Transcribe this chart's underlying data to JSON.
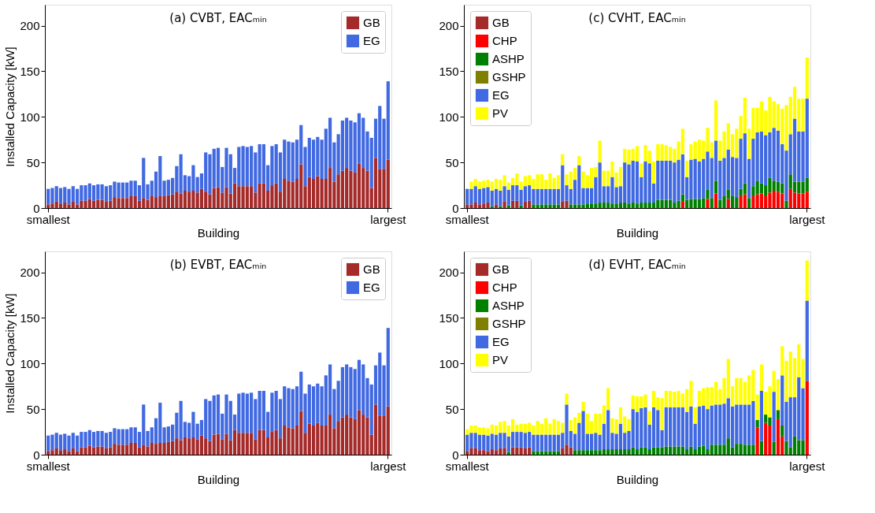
{
  "chart_data": [
    {
      "type": "bar",
      "stacked": true,
      "title": "(a) CVBT, EACₘᵢₙ",
      "xlabel": "Building",
      "ylabel": "Installed Capacity [kW]",
      "legend": "top right",
      "ylim": [
        0,
        223
      ],
      "yticks": [
        0,
        50,
        100,
        150,
        200
      ],
      "categories": [
        "smallest",
        null,
        null,
        null,
        null,
        null,
        null,
        null,
        null,
        null,
        null,
        null,
        null,
        null,
        null,
        null,
        null,
        null,
        null,
        null,
        null,
        null,
        null,
        null,
        null,
        null,
        null,
        null,
        null,
        null,
        null,
        null,
        null,
        null,
        null,
        null,
        null,
        null,
        null,
        null,
        null,
        null,
        null,
        null,
        null,
        null,
        null,
        null,
        null,
        null,
        null,
        null,
        null,
        null,
        null,
        null,
        null,
        null,
        null,
        null,
        null,
        null,
        null,
        null,
        null,
        null,
        null,
        null,
        null,
        null,
        null,
        null,
        null,
        null,
        null,
        null,
        null,
        null,
        null,
        null,
        null,
        null,
        "largest"
      ],
      "series": [
        {
          "name": "GB",
          "color": "#a52a2a",
          "values": [
            4,
            5,
            7,
            5,
            6,
            4,
            7,
            4,
            8,
            8,
            10,
            8,
            9,
            9,
            7,
            8,
            12,
            11,
            11,
            11,
            13,
            13,
            8,
            11,
            9,
            13,
            12,
            13,
            13,
            14,
            15,
            18,
            16,
            19,
            18,
            19,
            17,
            21,
            18,
            15,
            22,
            23,
            17,
            23,
            16,
            27,
            24,
            24,
            24,
            24,
            17,
            27,
            27,
            19,
            25,
            27,
            18,
            32,
            30,
            29,
            32,
            48,
            24,
            34,
            32,
            35,
            32,
            32,
            44,
            29,
            37,
            41,
            44,
            41,
            39,
            49,
            44,
            41,
            22,
            55,
            43,
            43,
            53
          ]
        },
        {
          "name": "EG",
          "color": "#4169e1",
          "values": [
            17,
            17,
            17,
            17,
            17,
            17,
            17,
            17,
            17,
            17,
            17,
            17,
            17,
            17,
            17,
            17,
            17,
            17,
            17,
            17,
            17,
            17,
            17,
            44,
            17,
            17,
            28,
            44,
            17,
            17,
            18,
            28,
            43,
            17,
            17,
            28,
            17,
            17,
            43,
            44,
            43,
            43,
            28,
            43,
            43,
            17,
            43,
            44,
            43,
            44,
            44,
            43,
            43,
            28,
            43,
            43,
            43,
            43,
            43,
            43,
            43,
            43,
            43,
            43,
            43,
            43,
            43,
            55,
            55,
            43,
            44,
            55,
            55,
            55,
            55,
            55,
            55,
            43,
            55,
            43,
            69,
            55,
            86
          ]
        }
      ]
    },
    {
      "type": "bar",
      "stacked": true,
      "title": "(c) CVHT, EACₘᵢₙ",
      "xlabel": "Building",
      "legend": "top left",
      "ylim": [
        0,
        223
      ],
      "yticks": [
        0,
        50,
        100,
        150,
        200
      ],
      "categories": [
        "smallest",
        null,
        null,
        null,
        null,
        null,
        null,
        null,
        null,
        null,
        null,
        null,
        null,
        null,
        null,
        null,
        null,
        null,
        null,
        null,
        null,
        null,
        null,
        null,
        null,
        null,
        null,
        null,
        null,
        null,
        null,
        null,
        null,
        null,
        null,
        null,
        null,
        null,
        null,
        null,
        null,
        null,
        null,
        null,
        null,
        null,
        null,
        null,
        null,
        null,
        null,
        null,
        null,
        null,
        null,
        null,
        null,
        null,
        null,
        null,
        null,
        null,
        null,
        null,
        null,
        null,
        null,
        null,
        null,
        null,
        null,
        null,
        null,
        null,
        null,
        null,
        null,
        null,
        null,
        null,
        null,
        null,
        "largest"
      ],
      "series": [
        {
          "name": "GB",
          "color": "#a52a2a",
          "values": [
            4,
            4,
            6,
            4,
            5,
            6,
            0,
            4,
            0,
            7,
            0,
            8,
            8,
            0,
            7,
            8,
            0,
            0,
            0,
            0,
            0,
            0,
            0,
            7,
            8,
            0,
            0,
            0,
            0,
            0,
            0,
            0,
            0,
            0,
            0,
            0,
            0,
            0,
            0,
            0,
            0,
            0,
            0,
            0,
            0,
            0,
            0,
            0,
            0,
            0,
            0,
            0,
            0,
            0,
            0,
            0,
            0,
            0,
            0,
            0,
            0,
            0,
            0,
            0,
            0,
            0,
            0,
            0,
            0,
            0,
            0,
            0,
            0,
            0,
            0,
            0,
            0,
            0,
            0,
            0,
            0,
            0,
            0
          ]
        },
        {
          "name": "CHP",
          "color": "#ff0000",
          "values": [
            0,
            0,
            0,
            0,
            0,
            0,
            0,
            0,
            0,
            0,
            0,
            0,
            0,
            0,
            0,
            0,
            0,
            0,
            0,
            0,
            0,
            0,
            0,
            0,
            0,
            0,
            0,
            0,
            0,
            0,
            0,
            0,
            0,
            0,
            0,
            0,
            0,
            0,
            0,
            0,
            0,
            0,
            0,
            0,
            0,
            0,
            0,
            0,
            0,
            0,
            0,
            0,
            7,
            0,
            0,
            0,
            0,
            0,
            10,
            0,
            16,
            0,
            0,
            10,
            0,
            0,
            13,
            15,
            0,
            13,
            15,
            16,
            13,
            17,
            19,
            18,
            16,
            0,
            21,
            17,
            16,
            16,
            18
          ]
        },
        {
          "name": "ASHP",
          "color": "#008000",
          "values": [
            0,
            0,
            0,
            0,
            0,
            0,
            2,
            0,
            2,
            0,
            3,
            0,
            0,
            3,
            0,
            0,
            4,
            4,
            4,
            4,
            4,
            4,
            4,
            0,
            0,
            4,
            4,
            4,
            4,
            5,
            5,
            5,
            6,
            6,
            6,
            5,
            5,
            6,
            6,
            5,
            6,
            5,
            6,
            6,
            6,
            6,
            9,
            9,
            9,
            9,
            6,
            8,
            8,
            9,
            10,
            10,
            10,
            11,
            10,
            11,
            14,
            9,
            13,
            10,
            13,
            12,
            8,
            12,
            11,
            11,
            15,
            11,
            12,
            16,
            11,
            11,
            11,
            8,
            16,
            12,
            13,
            13,
            15
          ]
        },
        {
          "name": "GSHP",
          "color": "#808000",
          "values": [
            0,
            0,
            0,
            0,
            0,
            0,
            0,
            0,
            0,
            0,
            0,
            0,
            0,
            0,
            0,
            0,
            0,
            0,
            0,
            0,
            0,
            0,
            0,
            0,
            0,
            0,
            0,
            0,
            0,
            0,
            0,
            0,
            0,
            0,
            0,
            0,
            0,
            0,
            0,
            0,
            0,
            0,
            0,
            0,
            0,
            0,
            0,
            0,
            0,
            0,
            0,
            0,
            0,
            0,
            0,
            0,
            0,
            0,
            0,
            0,
            0,
            0,
            0,
            0,
            0,
            0,
            0,
            0,
            0,
            0,
            0,
            0,
            0,
            0,
            0,
            0,
            0,
            0,
            0,
            0,
            0,
            0,
            0
          ]
        },
        {
          "name": "EG",
          "color": "#4169e1",
          "values": [
            17,
            17,
            18,
            17,
            17,
            17,
            17,
            17,
            17,
            17,
            17,
            17,
            17,
            17,
            17,
            17,
            17,
            17,
            17,
            17,
            17,
            17,
            17,
            40,
            17,
            17,
            27,
            43,
            18,
            17,
            17,
            29,
            44,
            18,
            18,
            29,
            18,
            18,
            44,
            43,
            46,
            46,
            28,
            45,
            43,
            21,
            43,
            43,
            43,
            43,
            44,
            45,
            44,
            25,
            43,
            44,
            41,
            43,
            42,
            44,
            44,
            43,
            42,
            44,
            43,
            43,
            55,
            55,
            43,
            52,
            53,
            57,
            55,
            50,
            58,
            56,
            43,
            55,
            44,
            69,
            55,
            55,
            87
          ]
        },
        {
          "name": "PV",
          "color": "#ffff00",
          "values": [
            0,
            8,
            8,
            8,
            8,
            8,
            10,
            11,
            12,
            12,
            8,
            8,
            13,
            9,
            11,
            11,
            11,
            16,
            16,
            10,
            17,
            12,
            15,
            12,
            12,
            19,
            13,
            10,
            18,
            14,
            22,
            11,
            24,
            17,
            17,
            17,
            16,
            21,
            15,
            16,
            13,
            17,
            15,
            18,
            14,
            24,
            18,
            18,
            17,
            15,
            15,
            20,
            28,
            18,
            17,
            19,
            24,
            20,
            26,
            17,
            44,
            22,
            29,
            29,
            25,
            32,
            25,
            39,
            33,
            34,
            27,
            33,
            27,
            39,
            29,
            29,
            39,
            50,
            41,
            35,
            36,
            36,
            45
          ]
        }
      ]
    },
    {
      "type": "bar",
      "stacked": true,
      "title": "(b) EVBT, EACₘᵢₙ",
      "xlabel": "Building",
      "ylabel": "Installed Capacity [kW]",
      "legend": "top right",
      "ylim": [
        0,
        223
      ],
      "yticks": [
        0,
        50,
        100,
        150,
        200
      ],
      "categories": [
        "smallest",
        null,
        null,
        null,
        null,
        null,
        null,
        null,
        null,
        null,
        null,
        null,
        null,
        null,
        null,
        null,
        null,
        null,
        null,
        null,
        null,
        null,
        null,
        null,
        null,
        null,
        null,
        null,
        null,
        null,
        null,
        null,
        null,
        null,
        null,
        null,
        null,
        null,
        null,
        null,
        null,
        null,
        null,
        null,
        null,
        null,
        null,
        null,
        null,
        null,
        null,
        null,
        null,
        null,
        null,
        null,
        null,
        null,
        null,
        null,
        null,
        null,
        null,
        null,
        null,
        null,
        null,
        null,
        null,
        null,
        null,
        null,
        null,
        null,
        null,
        null,
        null,
        null,
        null,
        null,
        null,
        null,
        "largest"
      ],
      "series": [
        {
          "name": "GB",
          "color": "#a52a2a",
          "values": [
            4,
            5,
            7,
            5,
            6,
            4,
            7,
            4,
            8,
            8,
            10,
            8,
            9,
            9,
            7,
            8,
            12,
            11,
            11,
            11,
            13,
            13,
            8,
            11,
            9,
            13,
            12,
            13,
            13,
            14,
            15,
            18,
            16,
            19,
            18,
            19,
            17,
            21,
            18,
            15,
            22,
            23,
            17,
            23,
            16,
            27,
            24,
            24,
            24,
            24,
            17,
            27,
            27,
            19,
            25,
            27,
            18,
            32,
            30,
            29,
            32,
            48,
            24,
            34,
            32,
            35,
            32,
            32,
            44,
            29,
            37,
            41,
            44,
            41,
            39,
            49,
            44,
            41,
            22,
            55,
            43,
            43,
            53
          ]
        },
        {
          "name": "EG",
          "color": "#4169e1",
          "values": [
            17,
            17,
            17,
            17,
            17,
            17,
            17,
            17,
            17,
            17,
            17,
            17,
            17,
            17,
            17,
            17,
            17,
            17,
            17,
            17,
            17,
            17,
            17,
            44,
            17,
            17,
            28,
            44,
            17,
            17,
            18,
            28,
            43,
            17,
            17,
            28,
            17,
            17,
            43,
            44,
            43,
            43,
            28,
            43,
            43,
            17,
            43,
            44,
            43,
            44,
            44,
            43,
            43,
            28,
            43,
            43,
            43,
            43,
            43,
            43,
            43,
            43,
            43,
            43,
            43,
            43,
            43,
            55,
            55,
            43,
            44,
            55,
            55,
            55,
            55,
            55,
            55,
            43,
            55,
            43,
            69,
            55,
            86
          ]
        }
      ]
    },
    {
      "type": "bar",
      "stacked": true,
      "title": "(d) EVHT, EACₘᵢₙ",
      "xlabel": "Building",
      "legend": "top left",
      "ylim": [
        0,
        223
      ],
      "yticks": [
        0,
        50,
        100,
        150,
        200
      ],
      "categories": [
        "smallest",
        null,
        null,
        null,
        null,
        null,
        null,
        null,
        null,
        null,
        null,
        null,
        null,
        null,
        null,
        null,
        null,
        null,
        null,
        null,
        null,
        null,
        null,
        null,
        null,
        null,
        null,
        null,
        null,
        null,
        null,
        null,
        null,
        null,
        null,
        null,
        null,
        null,
        null,
        null,
        null,
        null,
        null,
        null,
        null,
        null,
        null,
        null,
        null,
        null,
        null,
        null,
        null,
        null,
        null,
        null,
        null,
        null,
        null,
        null,
        null,
        null,
        null,
        null,
        null,
        null,
        null,
        null,
        null,
        null,
        null,
        null,
        null,
        null,
        null,
        null,
        null,
        null,
        null,
        null,
        null,
        null,
        "largest"
      ],
      "series": [
        {
          "name": "GB",
          "color": "#a52a2a",
          "values": [
            4,
            7,
            7,
            5,
            5,
            4,
            6,
            5,
            7,
            7,
            0,
            8,
            8,
            8,
            7,
            8,
            0,
            0,
            0,
            0,
            0,
            0,
            0,
            7,
            11,
            8,
            0,
            0,
            0,
            0,
            0,
            0,
            0,
            0,
            0,
            0,
            0,
            0,
            0,
            0,
            0,
            0,
            0,
            0,
            0,
            0,
            0,
            0,
            0,
            0,
            0,
            0,
            0,
            0,
            0,
            0,
            0,
            0,
            0,
            0,
            0,
            0,
            0,
            0,
            0,
            0,
            0,
            0,
            0,
            0,
            0,
            0,
            0,
            0,
            0,
            0,
            0,
            0,
            0,
            0,
            0,
            0,
            0
          ]
        },
        {
          "name": "CHP",
          "color": "#ff0000",
          "values": [
            0,
            0,
            0,
            0,
            0,
            0,
            0,
            0,
            0,
            0,
            0,
            0,
            0,
            0,
            0,
            0,
            0,
            0,
            0,
            0,
            0,
            0,
            0,
            0,
            0,
            0,
            0,
            0,
            0,
            0,
            0,
            0,
            0,
            0,
            0,
            0,
            0,
            0,
            0,
            0,
            0,
            0,
            0,
            0,
            0,
            0,
            0,
            0,
            0,
            0,
            0,
            0,
            0,
            0,
            0,
            0,
            0,
            0,
            0,
            0,
            0,
            0,
            0,
            0,
            0,
            0,
            0,
            0,
            0,
            0,
            30,
            0,
            35,
            32,
            0,
            39,
            20,
            0,
            0,
            0,
            0,
            0,
            81
          ]
        },
        {
          "name": "ASHP",
          "color": "#008000",
          "values": [
            0,
            0,
            0,
            0,
            0,
            0,
            0,
            0,
            0,
            0,
            3,
            0,
            0,
            0,
            0,
            0,
            4,
            4,
            4,
            4,
            4,
            4,
            4,
            0,
            0,
            0,
            5,
            5,
            5,
            5,
            5,
            5,
            5,
            6,
            6,
            6,
            6,
            6,
            6,
            6,
            8,
            6,
            8,
            8,
            6,
            8,
            8,
            8,
            9,
            9,
            9,
            9,
            9,
            6,
            9,
            6,
            9,
            10,
            6,
            11,
            11,
            11,
            11,
            18,
            8,
            12,
            12,
            11,
            11,
            11,
            8,
            15,
            9,
            9,
            14,
            10,
            12,
            15,
            8,
            20,
            16,
            16,
            0
          ]
        },
        {
          "name": "GSHP",
          "color": "#808000",
          "values": [
            0,
            0,
            0,
            0,
            0,
            0,
            0,
            0,
            0,
            0,
            0,
            0,
            0,
            0,
            0,
            0,
            0,
            0,
            0,
            0,
            0,
            0,
            0,
            0,
            0,
            0,
            0,
            0,
            0,
            0,
            0,
            0,
            0,
            0,
            0,
            0,
            0,
            0,
            0,
            0,
            0,
            0,
            0,
            0,
            0,
            0,
            0,
            0,
            0,
            0,
            0,
            0,
            0,
            0,
            0,
            0,
            0,
            0,
            0,
            0,
            0,
            0,
            0,
            0,
            0,
            0,
            0,
            0,
            0,
            0,
            0,
            0,
            0,
            0,
            0,
            0,
            0,
            0,
            0,
            0,
            0,
            0,
            0
          ]
        },
        {
          "name": "EG",
          "color": "#4169e1",
          "values": [
            18,
            17,
            17,
            17,
            17,
            17,
            17,
            17,
            17,
            17,
            17,
            17,
            17,
            17,
            17,
            17,
            18,
            18,
            18,
            18,
            18,
            18,
            18,
            17,
            44,
            18,
            18,
            30,
            43,
            18,
            18,
            19,
            17,
            28,
            43,
            18,
            17,
            28,
            18,
            20,
            42,
            41,
            43,
            44,
            27,
            44,
            41,
            19,
            43,
            43,
            43,
            43,
            43,
            41,
            44,
            28,
            44,
            44,
            44,
            43,
            44,
            44,
            45,
            44,
            45,
            43,
            43,
            44,
            44,
            48,
            0,
            55,
            0,
            0,
            55,
            0,
            55,
            43,
            55,
            43,
            69,
            57,
            88
          ]
        },
        {
          "name": "PV",
          "color": "#ffff00",
          "values": [
            6,
            8,
            8,
            8,
            8,
            8,
            10,
            10,
            12,
            13,
            12,
            14,
            8,
            9,
            10,
            10,
            10,
            15,
            12,
            18,
            12,
            17,
            15,
            11,
            12,
            12,
            18,
            11,
            10,
            22,
            14,
            21,
            23,
            20,
            24,
            16,
            16,
            18,
            18,
            13,
            15,
            17,
            13,
            14,
            15,
            18,
            14,
            35,
            18,
            18,
            17,
            18,
            15,
            25,
            28,
            18,
            17,
            19,
            24,
            20,
            25,
            17,
            28,
            43,
            22,
            29,
            29,
            25,
            32,
            34,
            28,
            29,
            25,
            34,
            23,
            34,
            32,
            45,
            50,
            43,
            36,
            32,
            44
          ]
        }
      ]
    }
  ]
}
